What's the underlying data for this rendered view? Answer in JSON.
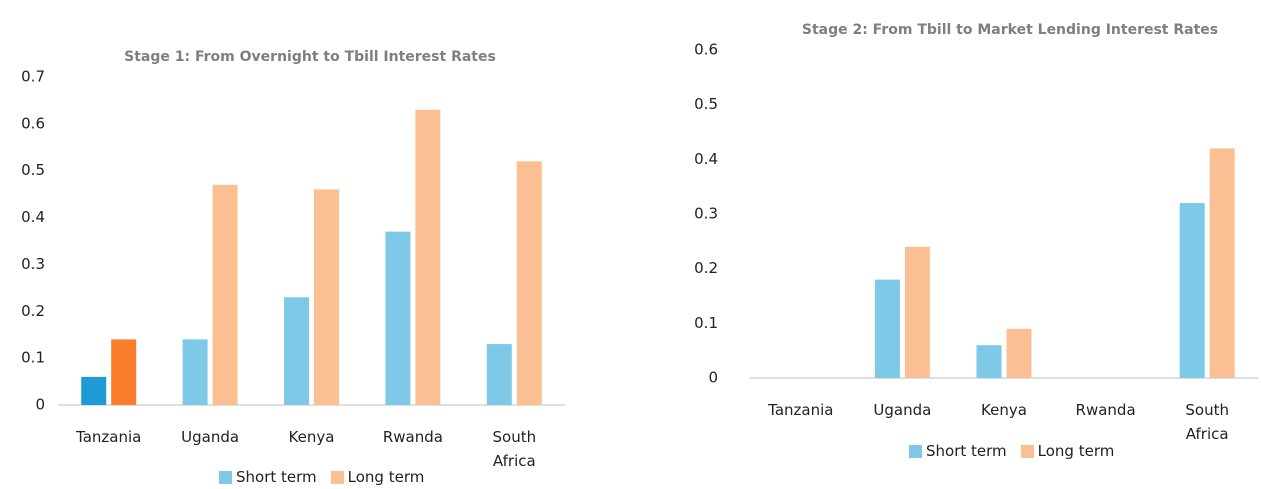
{
  "chart_data": [
    {
      "type": "bar",
      "title": "Stage 1: From Overnight to Tbill Interest Rates",
      "categories": [
        "Tanzania",
        "Uganda",
        "Kenya",
        "Rwanda",
        "South Africa"
      ],
      "series": [
        {
          "name": "Short term",
          "color": "#7ec8e8",
          "point_colors": [
            "#1e9bd7",
            "#7ec8e8",
            "#7ec8e8",
            "#7ec8e8",
            "#7ec8e8"
          ],
          "values": [
            0.06,
            0.14,
            0.23,
            0.37,
            0.13
          ]
        },
        {
          "name": "Long term",
          "color": "#fbbf94",
          "point_colors": [
            "#f97d2b",
            "#fbbf94",
            "#fbbf94",
            "#fbbf94",
            "#fbbf94"
          ],
          "values": [
            0.14,
            0.47,
            0.46,
            0.63,
            0.52
          ]
        }
      ],
      "ylim": [
        0,
        0.7
      ],
      "yticks": [
        0,
        0.1,
        0.2,
        0.3,
        0.4,
        0.5,
        0.6,
        0.7
      ],
      "grid": false,
      "legend": "bottom"
    },
    {
      "type": "bar",
      "title": "Stage 2: From Tbill to Market Lending Interest Rates",
      "categories": [
        "Tanzania",
        "Uganda",
        "Kenya",
        "Rwanda",
        "South Africa"
      ],
      "series": [
        {
          "name": "Short term",
          "color": "#7ec8e8",
          "values": [
            0,
            0.18,
            0.06,
            0,
            0.32
          ]
        },
        {
          "name": "Long term",
          "color": "#fbbf94",
          "values": [
            0,
            0.24,
            0.09,
            0,
            0.42
          ]
        }
      ],
      "ylim": [
        0,
        0.6
      ],
      "yticks": [
        0,
        0.1,
        0.2,
        0.3,
        0.4,
        0.5,
        0.6
      ],
      "grid": false,
      "legend": "bottom"
    }
  ]
}
